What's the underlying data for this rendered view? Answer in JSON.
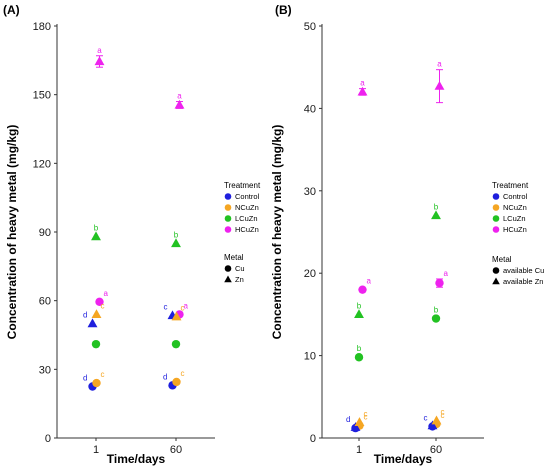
{
  "figure": {
    "treatment_colors": {
      "Control": "#1f1fdd",
      "NCuZn": "#f5a623",
      "LCuZn": "#22c222",
      "HCuZn": "#ee22ee"
    }
  },
  "chart_data": [
    {
      "type": "scatter",
      "panel": "(A)",
      "ylabel": "Concentration of heavy metal (mg/kg)",
      "xlabel": "Time/days",
      "categories": [
        "1",
        "60"
      ],
      "ylim": [
        0,
        180
      ],
      "yticks": [
        0,
        30,
        60,
        90,
        120,
        150,
        180
      ],
      "grid": false,
      "legend": {
        "placement": "right",
        "treatment_title": "Treatment",
        "treatments": [
          "Control",
          "NCuZn",
          "LCuZn",
          "HCuZn"
        ],
        "metal_title": "Metal",
        "metals": [
          "Cu",
          "Zn"
        ]
      },
      "series": [
        {
          "name": "Control",
          "metal": "Cu",
          "values": [
            22.5,
            23.0
          ],
          "errors": [
            0,
            0
          ],
          "labels": [
            "d",
            "d"
          ]
        },
        {
          "name": "NCuZn",
          "metal": "Cu",
          "values": [
            24.0,
            24.5
          ],
          "errors": [
            0,
            0
          ],
          "labels": [
            "c",
            "c"
          ]
        },
        {
          "name": "LCuZn",
          "metal": "Cu",
          "values": [
            41.0,
            41.0
          ],
          "errors": [
            0,
            0
          ],
          "labels": [
            "",
            ""
          ]
        },
        {
          "name": "HCuZn",
          "metal": "Cu",
          "values": [
            59.5,
            54.0
          ],
          "errors": [
            0,
            0
          ],
          "labels": [
            "a",
            "a"
          ]
        },
        {
          "name": "Control",
          "metal": "Zn",
          "values": [
            50.0,
            53.5
          ],
          "errors": [
            0,
            0
          ],
          "labels": [
            "d",
            "c"
          ]
        },
        {
          "name": "NCuZn",
          "metal": "Zn",
          "values": [
            54.0,
            53.0
          ],
          "errors": [
            0,
            0
          ],
          "labels": [
            "c",
            "c"
          ]
        },
        {
          "name": "LCuZn",
          "metal": "Zn",
          "values": [
            88.0,
            85.0
          ],
          "errors": [
            0,
            0
          ],
          "labels": [
            "b",
            "b"
          ]
        },
        {
          "name": "HCuZn",
          "metal": "Zn",
          "values": [
            164.5,
            145.5
          ],
          "errors": [
            2.5,
            1.5
          ],
          "labels": [
            "a",
            "a"
          ]
        }
      ]
    },
    {
      "type": "scatter",
      "panel": "(B)",
      "ylabel": "Concentration of heavy metal (mg/kg)",
      "xlabel": "Time/days",
      "categories": [
        "1",
        "60"
      ],
      "ylim": [
        0,
        50
      ],
      "yticks": [
        0,
        10,
        20,
        30,
        40,
        50
      ],
      "grid": false,
      "legend": {
        "placement": "right",
        "treatment_title": "Treatment",
        "treatments": [
          "Control",
          "NCuZn",
          "LCuZn",
          "HCuZn"
        ],
        "metal_title": "Metal",
        "metals": [
          "available Cu",
          "available Zn"
        ]
      },
      "series": [
        {
          "name": "Control",
          "metal": "available Cu",
          "values": [
            1.2,
            1.4
          ],
          "errors": [
            0,
            0
          ],
          "labels": [
            "d",
            "c"
          ]
        },
        {
          "name": "NCuZn",
          "metal": "available Cu",
          "values": [
            1.5,
            1.7
          ],
          "errors": [
            0,
            0
          ],
          "labels": [
            "c",
            "c"
          ]
        },
        {
          "name": "LCuZn",
          "metal": "available Cu",
          "values": [
            9.8,
            14.5
          ],
          "errors": [
            0,
            0
          ],
          "labels": [
            "b",
            "b"
          ]
        },
        {
          "name": "HCuZn",
          "metal": "available Cu",
          "values": [
            18.0,
            18.8
          ],
          "errors": [
            0,
            0.5
          ],
          "labels": [
            "a",
            "a"
          ]
        },
        {
          "name": "Control",
          "metal": "available Zn",
          "values": [
            1.3,
            1.5
          ],
          "errors": [
            0,
            0
          ],
          "labels": [
            "",
            ""
          ]
        },
        {
          "name": "NCuZn",
          "metal": "available Zn",
          "values": [
            1.9,
            2.1
          ],
          "errors": [
            0,
            0
          ],
          "labels": [
            "c",
            "c"
          ]
        },
        {
          "name": "LCuZn",
          "metal": "available Zn",
          "values": [
            15.0,
            27.0
          ],
          "errors": [
            0,
            0
          ],
          "labels": [
            "b",
            "b"
          ]
        },
        {
          "name": "HCuZn",
          "metal": "available Zn",
          "values": [
            42.0,
            42.7
          ],
          "errors": [
            0.4,
            2.0
          ],
          "labels": [
            "a",
            "a"
          ]
        }
      ]
    }
  ]
}
